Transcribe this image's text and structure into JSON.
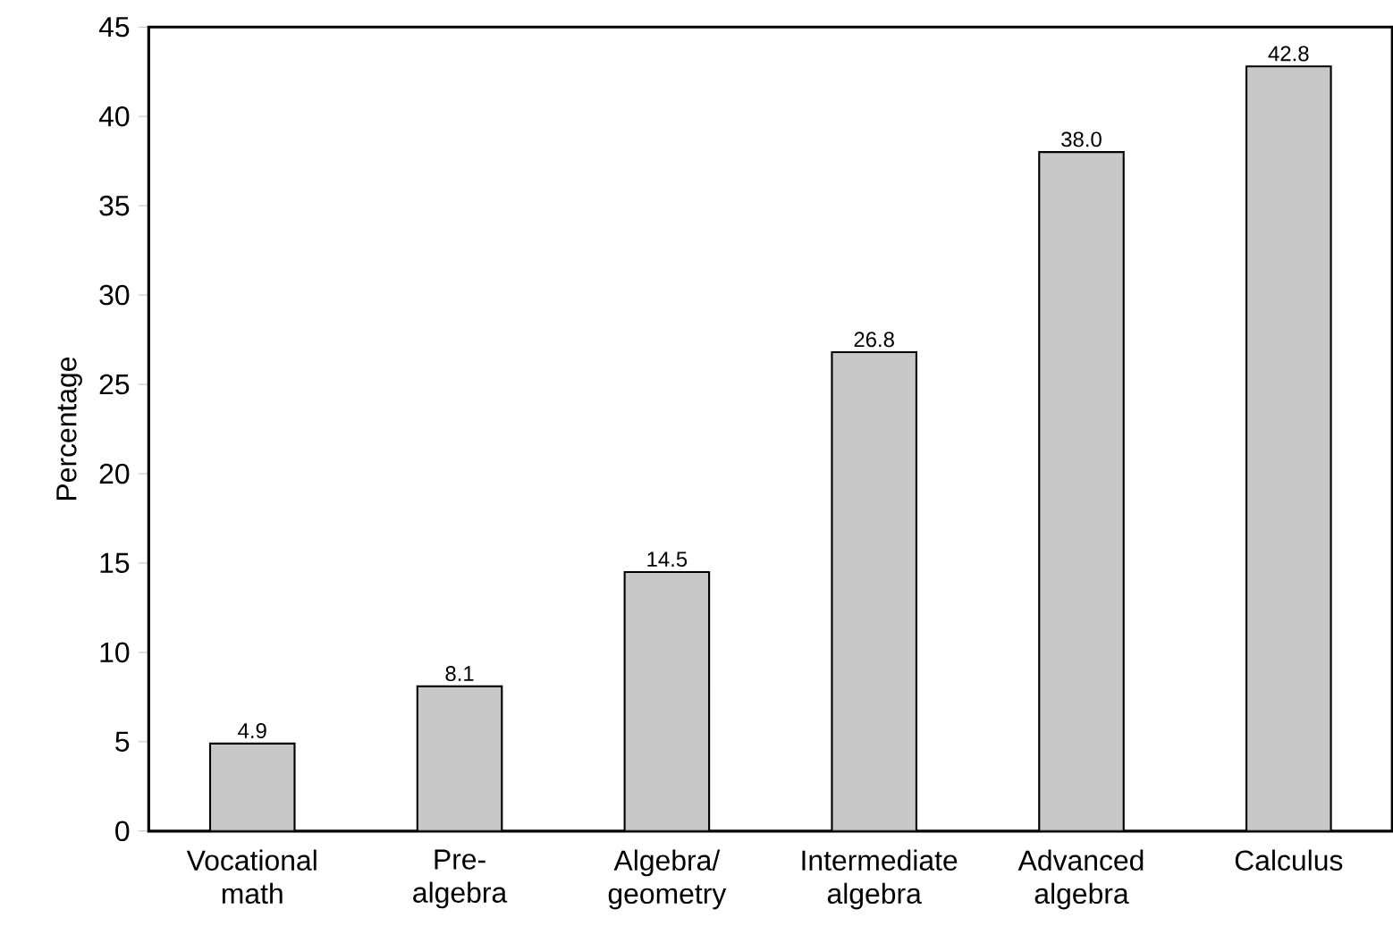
{
  "chart_data": {
    "type": "bar",
    "ylabel": "Percentage",
    "categories": [
      "Vocational math",
      "Pre-algebra",
      "Algebra/geometry",
      "Intermediate algebra",
      "Advanced algebra",
      "Calculus"
    ],
    "values": [
      4.9,
      8.1,
      14.5,
      26.8,
      38.0,
      42.8
    ],
    "value_labels": [
      "4.9",
      "8.1",
      "14.5",
      "26.8",
      "38.0",
      "42.8"
    ],
    "color": "#c8c8c8",
    "ylim": [
      0,
      45
    ],
    "yticks": [
      0,
      5,
      10,
      15,
      20,
      25,
      30,
      35,
      40,
      45
    ],
    "grid": false
  }
}
